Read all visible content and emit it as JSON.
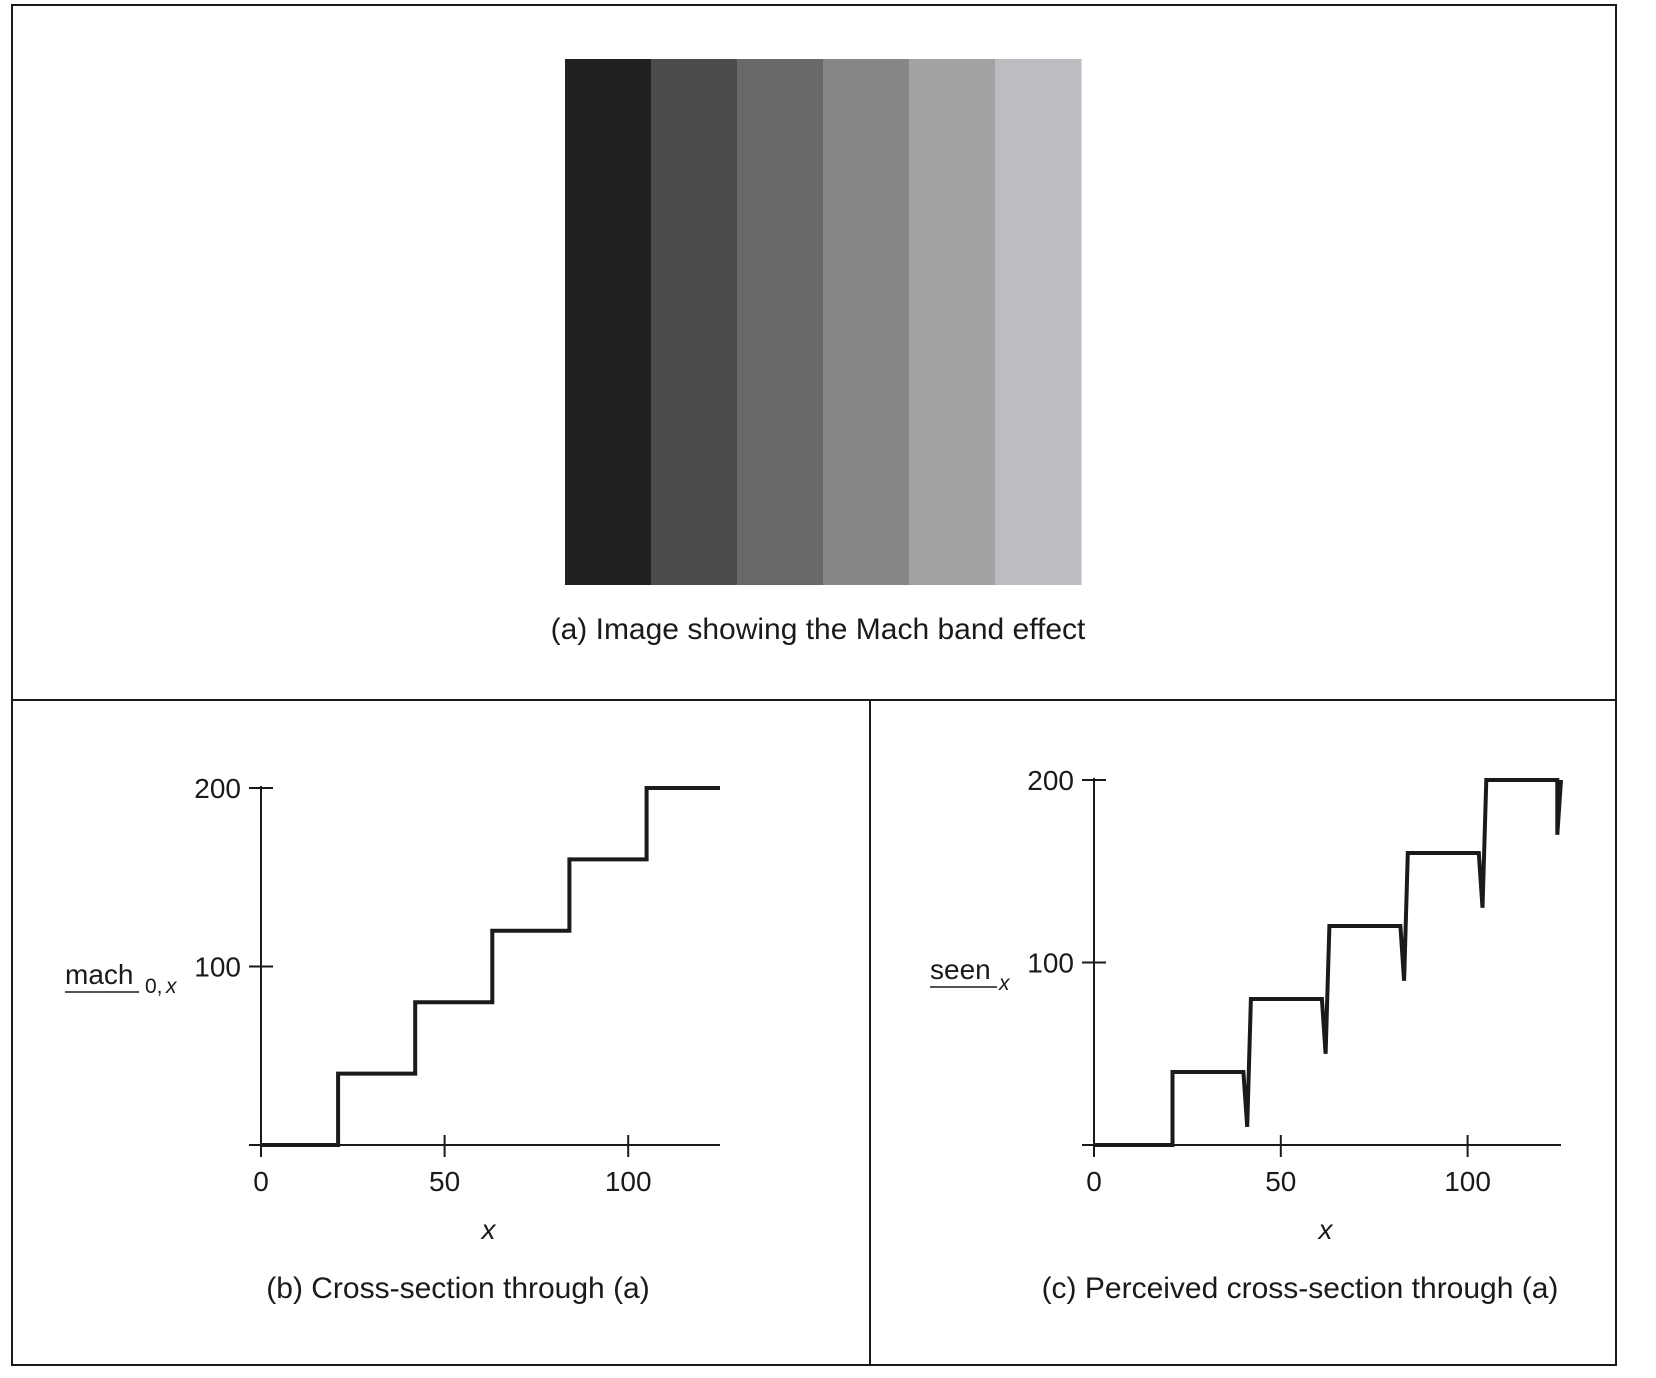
{
  "panel_a": {
    "caption": "(a) Image showing the Mach band effect",
    "band_colors": [
      "#232021",
      "#4a4b4d",
      "#69696b",
      "#87878a",
      "#a3a3a6",
      "#bcbdc0"
    ]
  },
  "panel_b": {
    "caption": "(b) Cross-section through (a)",
    "ylabel_main": "mach",
    "ylabel_sub": "0,",
    "ylabel_var": "x",
    "xlabel": "x"
  },
  "panel_c": {
    "caption": "(c) Perceived cross-section through (a)",
    "ylabel_main": "seen",
    "ylabel_sub": "",
    "ylabel_var": "x",
    "xlabel": "x"
  },
  "chart_data": [
    {
      "type": "line",
      "title": "(b) Cross-section through (a)",
      "xlabel": "x",
      "ylabel": "mach0,x",
      "xlim": [
        0,
        125
      ],
      "ylim": [
        0,
        200
      ],
      "xticks": [
        0,
        50,
        100
      ],
      "yticks": [
        100,
        200
      ],
      "ytick_labels": [
        "100",
        "200"
      ],
      "xtick_labels": [
        "0",
        "50",
        "100"
      ],
      "series": [
        {
          "points": [
            [
              0,
              0
            ],
            [
              21,
              0
            ],
            [
              21,
              40
            ],
            [
              42,
              40
            ],
            [
              42,
              80
            ],
            [
              63,
              80
            ],
            [
              63,
              120
            ],
            [
              84,
              120
            ],
            [
              84,
              160
            ],
            [
              105,
              160
            ],
            [
              105,
              200
            ],
            [
              125,
              200
            ]
          ]
        }
      ]
    },
    {
      "type": "line",
      "title": "(c) Perceived cross-section through (a)",
      "xlabel": "x",
      "ylabel": "seenx",
      "xlim": [
        0,
        125
      ],
      "ylim": [
        0,
        200
      ],
      "xticks": [
        0,
        50,
        100
      ],
      "yticks": [
        100,
        200
      ],
      "ytick_labels": [
        "100",
        "200"
      ],
      "xtick_labels": [
        "0",
        "50",
        "100"
      ],
      "series": [
        {
          "points": [
            [
              0,
              0
            ],
            [
              21,
              0
            ],
            [
              21,
              40
            ],
            [
              40,
              40
            ],
            [
              41,
              10
            ],
            [
              42,
              80
            ],
            [
              61,
              80
            ],
            [
              62,
              50
            ],
            [
              63,
              120
            ],
            [
              82,
              120
            ],
            [
              83,
              90
            ],
            [
              84,
              160
            ],
            [
              103,
              160
            ],
            [
              104,
              130
            ],
            [
              105,
              200
            ],
            [
              124,
              200
            ],
            [
              124,
              170
            ],
            [
              125,
              200
            ]
          ]
        }
      ]
    }
  ]
}
